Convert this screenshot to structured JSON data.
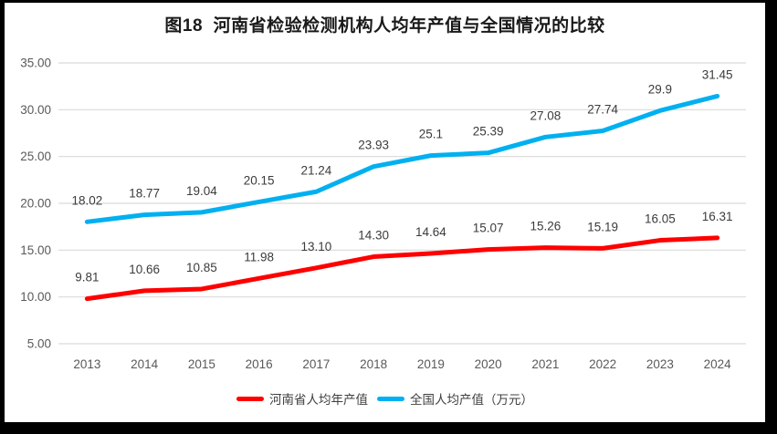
{
  "title": "图18  河南省检验检测机构人均年产值与全国情况的比较",
  "colors": {
    "background": "#ffffff",
    "page_border": "#000000",
    "gridline": "#d9d9d9",
    "axis_text": "#595959",
    "data_label": "#3b3b3b",
    "title_text": "#1a1a1a",
    "henan_red": "#ff0000",
    "national_blue": "#00b0f0"
  },
  "chart_data": {
    "type": "line",
    "categories": [
      "2013",
      "2014",
      "2015",
      "2016",
      "2017",
      "2018",
      "2019",
      "2020",
      "2021",
      "2022",
      "2023",
      "2024"
    ],
    "series": [
      {
        "name": "河南省人均年产值",
        "color": "#ff0000",
        "values": [
          9.81,
          10.66,
          10.85,
          11.98,
          13.1,
          14.3,
          14.64,
          15.07,
          15.26,
          15.19,
          16.05,
          16.31
        ],
        "labels": [
          "9.81",
          "10.66",
          "10.85",
          "11.98",
          "13.10",
          "14.30",
          "14.64",
          "15.07",
          "15.26",
          "15.19",
          "16.05",
          "16.31"
        ]
      },
      {
        "name": "全国人均产值（万元）",
        "color": "#00b0f0",
        "values": [
          18.02,
          18.77,
          19.04,
          20.15,
          21.24,
          23.93,
          25.1,
          25.39,
          27.08,
          27.74,
          29.9,
          31.45
        ],
        "labels": [
          "18.02",
          "18.77",
          "19.04",
          "20.15",
          "21.24",
          "23.93",
          "25.1",
          "25.39",
          "27.08",
          "27.74",
          "29.9",
          "31.45"
        ]
      }
    ],
    "title": "图18  河南省检验检测机构人均年产值与全国情况的比较",
    "xlabel": "",
    "ylabel": "",
    "ylim": [
      5,
      35
    ],
    "ytick_step": 5,
    "ytick_labels": [
      "5.00",
      "10.00",
      "15.00",
      "20.00",
      "25.00",
      "30.00",
      "35.00"
    ],
    "grid": "horizontal-only",
    "legend_position": "bottom"
  }
}
